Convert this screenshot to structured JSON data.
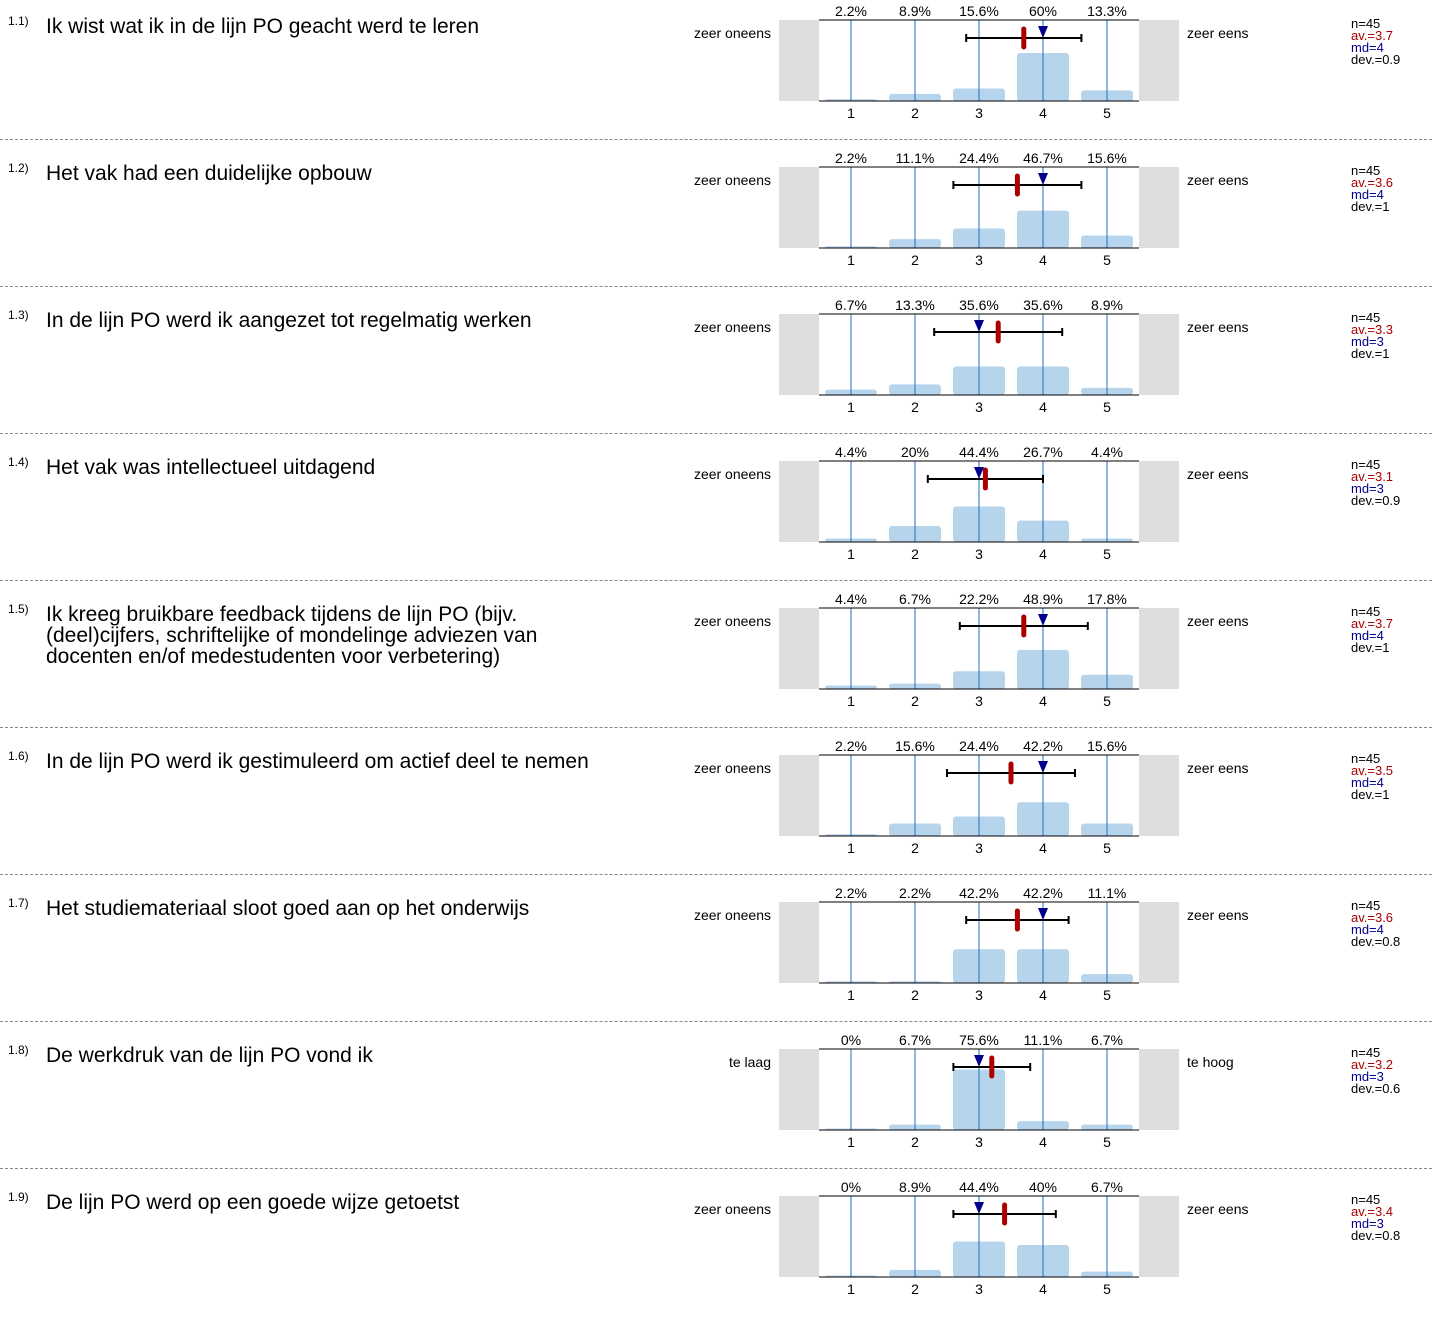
{
  "items": [
    {
      "num": "1.1)",
      "question": "Ik wist wat ik in de lijn PO geacht werd te leren",
      "left_label": "zeer oneens",
      "right_label": "zeer eens",
      "stats": {
        "n": "n=45",
        "av": "av.=3.7",
        "md": "md=4",
        "dev": "dev.=0.9"
      }
    },
    {
      "num": "1.2)",
      "question": "Het vak had een duidelijke opbouw",
      "left_label": "zeer oneens",
      "right_label": "zeer eens",
      "stats": {
        "n": "n=45",
        "av": "av.=3.6",
        "md": "md=4",
        "dev": "dev.=1"
      }
    },
    {
      "num": "1.3)",
      "question": "In de lijn PO  werd ik aangezet tot regelmatig werken",
      "left_label": "zeer oneens",
      "right_label": "zeer eens",
      "stats": {
        "n": "n=45",
        "av": "av.=3.3",
        "md": "md=3",
        "dev": "dev.=1"
      }
    },
    {
      "num": "1.4)",
      "question": "Het vak was intellectueel uitdagend",
      "left_label": "zeer oneens",
      "right_label": "zeer eens",
      "stats": {
        "n": "n=45",
        "av": "av.=3.1",
        "md": "md=3",
        "dev": "dev.=0.9"
      }
    },
    {
      "num": "1.5)",
      "question": "Ik kreeg bruikbare feedback tijdens de lijn PO (bijv. (deel)cijfers, schriftelijke of mondelinge adviezen van docenten en/of medestudenten voor verbetering)",
      "left_label": "zeer oneens",
      "right_label": "zeer eens",
      "stats": {
        "n": "n=45",
        "av": "av.=3.7",
        "md": "md=4",
        "dev": "dev.=1"
      }
    },
    {
      "num": "1.6)",
      "question": "In de lijn PO werd ik gestimuleerd om actief deel te nemen",
      "left_label": "zeer oneens",
      "right_label": "zeer eens",
      "stats": {
        "n": "n=45",
        "av": "av.=3.5",
        "md": "md=4",
        "dev": "dev.=1"
      }
    },
    {
      "num": "1.7)",
      "question": "Het studiemateriaal sloot goed aan op het onderwijs",
      "left_label": "zeer oneens",
      "right_label": "zeer eens",
      "stats": {
        "n": "n=45",
        "av": "av.=3.6",
        "md": "md=4",
        "dev": "dev.=0.8"
      }
    },
    {
      "num": "1.8)",
      "question": "De werkdruk van de lijn PO vond ik",
      "left_label": "te laag",
      "right_label": "te hoog",
      "stats": {
        "n": "n=45",
        "av": "av.=3.2",
        "md": "md=3",
        "dev": "dev.=0.6"
      }
    },
    {
      "num": "1.9)",
      "question": "De lijn PO werd op een goede wijze getoetst",
      "left_label": "zeer oneens",
      "right_label": "zeer eens",
      "stats": {
        "n": "n=45",
        "av": "av.=3.4",
        "md": "md=3",
        "dev": "dev.=0.8"
      }
    }
  ],
  "colors": {
    "bar": "#b6d4ec",
    "gridline": "#1f6fbf",
    "side_panel": "#dedede",
    "mean": "#aa0000",
    "median": "#00008b",
    "whisker": "#000000"
  },
  "chart_data": [
    {
      "type": "bar",
      "categories": [
        "1",
        "2",
        "3",
        "4",
        "5"
      ],
      "values": [
        2.2,
        8.9,
        15.6,
        60,
        13.3
      ],
      "labels": [
        "2.2%",
        "8.9%",
        "15.6%",
        "60%",
        "13.3%"
      ],
      "mean": 3.7,
      "median": 4,
      "deviation": 0.9,
      "ylim": [
        0,
        100
      ]
    },
    {
      "type": "bar",
      "categories": [
        "1",
        "2",
        "3",
        "4",
        "5"
      ],
      "values": [
        2.2,
        11.1,
        24.4,
        46.7,
        15.6
      ],
      "labels": [
        "2.2%",
        "11.1%",
        "24.4%",
        "46.7%",
        "15.6%"
      ],
      "mean": 3.6,
      "median": 4,
      "deviation": 1,
      "ylim": [
        0,
        100
      ]
    },
    {
      "type": "bar",
      "categories": [
        "1",
        "2",
        "3",
        "4",
        "5"
      ],
      "values": [
        6.7,
        13.3,
        35.6,
        35.6,
        8.9
      ],
      "labels": [
        "6.7%",
        "13.3%",
        "35.6%",
        "35.6%",
        "8.9%"
      ],
      "mean": 3.3,
      "median": 3,
      "deviation": 1,
      "ylim": [
        0,
        100
      ]
    },
    {
      "type": "bar",
      "categories": [
        "1",
        "2",
        "3",
        "4",
        "5"
      ],
      "values": [
        4.4,
        20,
        44.4,
        26.7,
        4.4
      ],
      "labels": [
        "4.4%",
        "20%",
        "44.4%",
        "26.7%",
        "4.4%"
      ],
      "mean": 3.1,
      "median": 3,
      "deviation": 0.9,
      "ylim": [
        0,
        100
      ]
    },
    {
      "type": "bar",
      "categories": [
        "1",
        "2",
        "3",
        "4",
        "5"
      ],
      "values": [
        4.4,
        6.7,
        22.2,
        48.9,
        17.8
      ],
      "labels": [
        "4.4%",
        "6.7%",
        "22.2%",
        "48.9%",
        "17.8%"
      ],
      "mean": 3.7,
      "median": 4,
      "deviation": 1,
      "ylim": [
        0,
        100
      ]
    },
    {
      "type": "bar",
      "categories": [
        "1",
        "2",
        "3",
        "4",
        "5"
      ],
      "values": [
        2.2,
        15.6,
        24.4,
        42.2,
        15.6
      ],
      "labels": [
        "2.2%",
        "15.6%",
        "24.4%",
        "42.2%",
        "15.6%"
      ],
      "mean": 3.5,
      "median": 4,
      "deviation": 1,
      "ylim": [
        0,
        100
      ]
    },
    {
      "type": "bar",
      "categories": [
        "1",
        "2",
        "3",
        "4",
        "5"
      ],
      "values": [
        2.2,
        2.2,
        42.2,
        42.2,
        11.1
      ],
      "labels": [
        "2.2%",
        "2.2%",
        "42.2%",
        "42.2%",
        "11.1%"
      ],
      "mean": 3.6,
      "median": 4,
      "deviation": 0.8,
      "ylim": [
        0,
        100
      ]
    },
    {
      "type": "bar",
      "categories": [
        "1",
        "2",
        "3",
        "4",
        "5"
      ],
      "values": [
        0,
        6.7,
        75.6,
        11.1,
        6.7
      ],
      "labels": [
        "0%",
        "6.7%",
        "75.6%",
        "11.1%",
        "6.7%"
      ],
      "mean": 3.2,
      "median": 3,
      "deviation": 0.6,
      "ylim": [
        0,
        100
      ]
    },
    {
      "type": "bar",
      "categories": [
        "1",
        "2",
        "3",
        "4",
        "5"
      ],
      "values": [
        0,
        8.9,
        44.4,
        40,
        6.7
      ],
      "labels": [
        "0%",
        "8.9%",
        "44.4%",
        "40%",
        "6.7%"
      ],
      "mean": 3.4,
      "median": 3,
      "deviation": 0.8,
      "ylim": [
        0,
        100
      ]
    }
  ]
}
